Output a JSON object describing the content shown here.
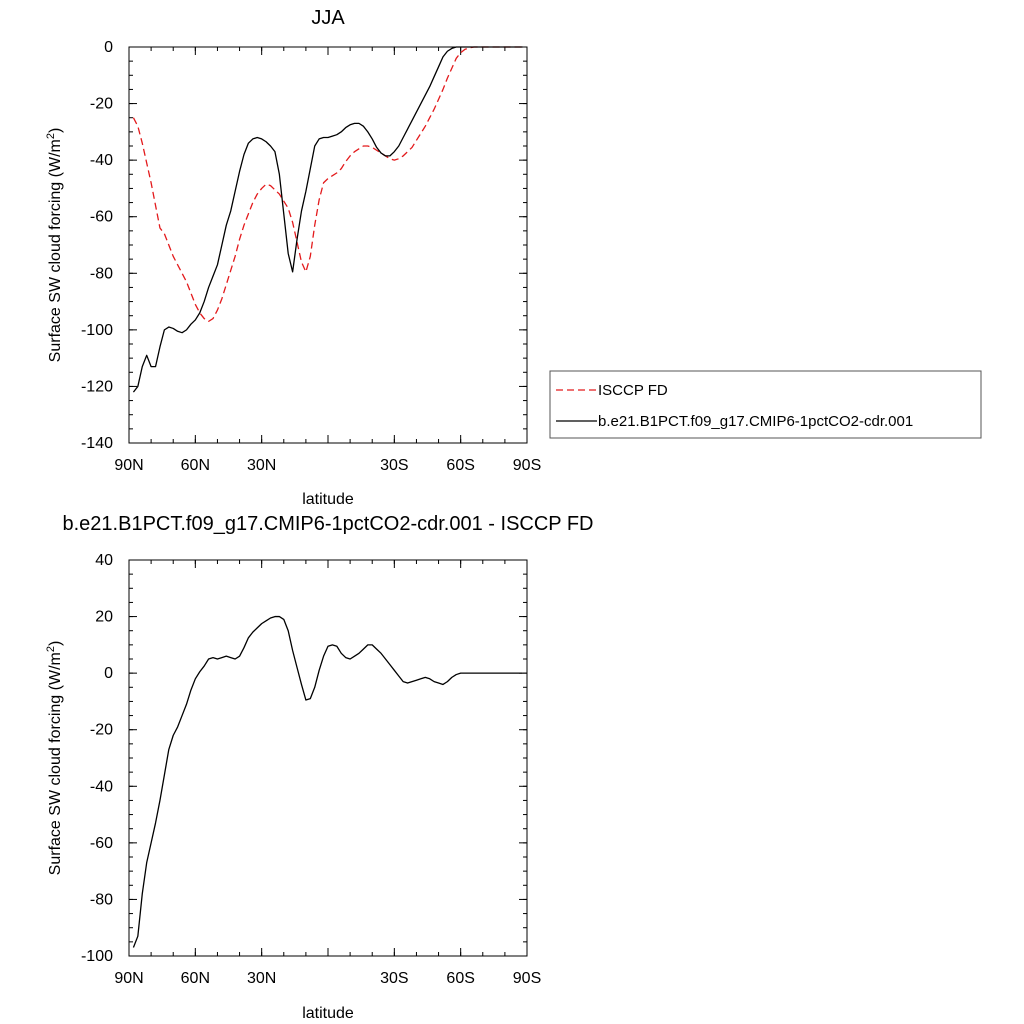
{
  "chart_data": [
    {
      "type": "line",
      "title": "JJA",
      "xlabel": "latitude",
      "ylabel": "Surface SW cloud forcing (W/m",
      "ylabel_sup": "2",
      "ylabel_end": ")",
      "xlim": [
        90,
        -90
      ],
      "ylim": [
        -140,
        0
      ],
      "xticks": [
        90,
        60,
        30,
        0,
        -30,
        -60,
        -90
      ],
      "xtick_labels": [
        "90N",
        "60N",
        "30N",
        "",
        "30S",
        "60S",
        "90S"
      ],
      "yticks": [
        0,
        -20,
        -40,
        -60,
        -80,
        -100,
        -120,
        -140
      ],
      "ytick_labels": [
        "0",
        "-20",
        "-40",
        "-60",
        "-80",
        "-100",
        "-120",
        "-140"
      ],
      "legend": {
        "placement": "right",
        "entries": [
          "ISCCP FD",
          "b.e21.B1PCT.f09_g17.CMIP6-1pctCO2-cdr.001"
        ]
      },
      "series": [
        {
          "name": "ISCCP FD",
          "color": "#e31a1c",
          "dash": "dashed",
          "x": [
            88,
            86,
            84,
            82,
            80,
            78,
            76,
            74,
            72,
            70,
            68,
            66,
            64,
            62,
            60,
            58,
            56,
            54,
            52,
            50,
            48,
            46,
            44,
            42,
            40,
            38,
            36,
            34,
            32,
            30,
            28,
            26,
            24,
            22,
            20,
            18,
            16,
            14,
            12,
            10,
            8,
            6,
            4,
            2,
            0,
            -2,
            -4,
            -6,
            -8,
            -10,
            -12,
            -14,
            -16,
            -18,
            -20,
            -22,
            -24,
            -26,
            -28,
            -30,
            -32,
            -34,
            -36,
            -38,
            -40,
            -42,
            -44,
            -46,
            -48,
            -50,
            -52,
            -54,
            -56,
            -58,
            -60,
            -62,
            -64,
            -66,
            -68,
            -70,
            -72,
            -74,
            -76,
            -78,
            -80,
            -82,
            -84,
            -86,
            -88
          ],
          "y": [
            -25,
            -28,
            -34,
            -41,
            -48,
            -56,
            -64,
            -66,
            -70,
            -74,
            -77,
            -80,
            -83,
            -87,
            -91,
            -94,
            -96,
            -97,
            -96,
            -93,
            -89,
            -84,
            -79,
            -74,
            -68,
            -63,
            -59,
            -55,
            -52,
            -50,
            -48.5,
            -49,
            -50.5,
            -52,
            -54.5,
            -57,
            -62,
            -69,
            -76,
            -79.5,
            -74,
            -63,
            -54,
            -48,
            -46.5,
            -45.5,
            -44.5,
            -43,
            -40.5,
            -38.5,
            -37,
            -36,
            -35,
            -35,
            -35.5,
            -36.5,
            -37.5,
            -38.5,
            -39.5,
            -40,
            -39.5,
            -38.5,
            -37,
            -35.5,
            -33,
            -30.5,
            -28,
            -25,
            -22,
            -18.5,
            -15,
            -11,
            -7.5,
            -4,
            -2,
            -0.8,
            -0.3,
            0,
            0,
            0,
            0,
            0,
            0,
            0,
            0,
            0,
            0,
            0,
            0
          ]
        },
        {
          "name": "b.e21.B1PCT.f09_g17.CMIP6-1pctCO2-cdr.001",
          "color": "#000000",
          "dash": "solid",
          "x": [
            88,
            86,
            84,
            82,
            80,
            78,
            76,
            74,
            72,
            70,
            68,
            66,
            64,
            62,
            60,
            58,
            56,
            54,
            52,
            50,
            48,
            46,
            44,
            42,
            40,
            38,
            36,
            34,
            32,
            30,
            28,
            26,
            24,
            22,
            20,
            18,
            16,
            14,
            12,
            10,
            8,
            6,
            4,
            2,
            0,
            -2,
            -4,
            -6,
            -8,
            -10,
            -12,
            -14,
            -16,
            -18,
            -20,
            -22,
            -24,
            -26,
            -28,
            -30,
            -32,
            -34,
            -36,
            -38,
            -40,
            -42,
            -44,
            -46,
            -48,
            -50,
            -52,
            -54,
            -56,
            -58,
            -60,
            -62,
            -64,
            -66,
            -68,
            -70,
            -72,
            -74,
            -76,
            -78,
            -80,
            -82,
            -84,
            -86,
            -88
          ],
          "y": [
            -122,
            -120,
            -113,
            -109,
            -113,
            -113,
            -106,
            -100,
            -99,
            -99.5,
            -100.5,
            -101,
            -100,
            -98,
            -96.5,
            -94,
            -90,
            -85,
            -81,
            -77,
            -70,
            -63,
            -58,
            -51,
            -44,
            -38,
            -34,
            -32.5,
            -32,
            -32.5,
            -33.5,
            -35,
            -37,
            -45,
            -59,
            -73,
            -79.5,
            -68,
            -58,
            -51,
            -43,
            -35,
            -32.5,
            -32,
            -32,
            -31.5,
            -31,
            -30,
            -28.5,
            -27.5,
            -27,
            -27,
            -28,
            -30,
            -32.5,
            -35.5,
            -37.5,
            -38.5,
            -38.5,
            -37,
            -35,
            -32,
            -29,
            -26,
            -23,
            -20,
            -17,
            -14,
            -10.5,
            -7,
            -3.5,
            -1.5,
            -0.5,
            0,
            0,
            0,
            0,
            0,
            0,
            0,
            0,
            0,
            0,
            0,
            0,
            0,
            0,
            0,
            0
          ]
        }
      ]
    },
    {
      "type": "line",
      "title": "b.e21.B1PCT.f09_g17.CMIP6-1pctCO2-cdr.001 - ISCCP FD",
      "xlabel": "latitude",
      "ylabel": "Surface SW cloud forcing (W/m",
      "ylabel_sup": "2",
      "ylabel_end": ")",
      "xlim": [
        90,
        -90
      ],
      "ylim": [
        -100,
        40
      ],
      "xticks": [
        90,
        60,
        30,
        0,
        -30,
        -60,
        -90
      ],
      "xtick_labels": [
        "90N",
        "60N",
        "30N",
        "",
        "30S",
        "60S",
        "90S"
      ],
      "yticks": [
        40,
        20,
        0,
        -20,
        -40,
        -60,
        -80,
        -100
      ],
      "ytick_labels": [
        "40",
        "20",
        "0",
        "-20",
        "-40",
        "-60",
        "-80",
        "-100"
      ],
      "series": [
        {
          "name": "",
          "color": "#000000",
          "dash": "solid",
          "x": [
            88,
            86,
            84,
            82,
            80,
            78,
            76,
            74,
            72,
            70,
            68,
            66,
            64,
            62,
            60,
            58,
            56,
            54,
            52,
            50,
            48,
            46,
            44,
            42,
            40,
            38,
            36,
            34,
            32,
            30,
            28,
            26,
            24,
            22,
            20,
            18,
            16,
            14,
            12,
            10,
            8,
            6,
            4,
            2,
            0,
            -2,
            -4,
            -6,
            -8,
            -10,
            -12,
            -14,
            -16,
            -18,
            -20,
            -22,
            -24,
            -26,
            -28,
            -30,
            -32,
            -34,
            -36,
            -38,
            -40,
            -42,
            -44,
            -46,
            -48,
            -50,
            -52,
            -54,
            -56,
            -58,
            -60,
            -62,
            -64,
            -66,
            -68,
            -70,
            -72,
            -74,
            -76,
            -78,
            -80,
            -82,
            -84,
            -86,
            -88
          ],
          "y": [
            -97,
            -93,
            -78,
            -67,
            -60,
            -53,
            -45,
            -36,
            -27,
            -22,
            -19,
            -15,
            -11,
            -6,
            -2,
            0.5,
            2.5,
            5,
            5.5,
            5,
            5.5,
            6,
            5.5,
            5,
            6,
            9,
            12.5,
            14.5,
            16,
            17.5,
            18.5,
            19.5,
            20,
            20,
            19,
            15,
            8,
            2,
            -4,
            -9.5,
            -9,
            -5,
            1,
            6,
            9.5,
            10,
            9.5,
            7,
            5.5,
            5,
            6,
            7,
            8.5,
            10,
            10,
            8.5,
            7,
            5,
            3,
            1,
            -1,
            -3,
            -3.5,
            -3,
            -2.5,
            -2,
            -1.5,
            -2,
            -3,
            -3.5,
            -4,
            -3,
            -1.5,
            -0.5,
            0,
            0,
            0,
            0,
            0,
            0,
            0,
            0,
            0,
            0,
            0,
            0,
            0,
            0,
            0
          ]
        }
      ]
    }
  ]
}
